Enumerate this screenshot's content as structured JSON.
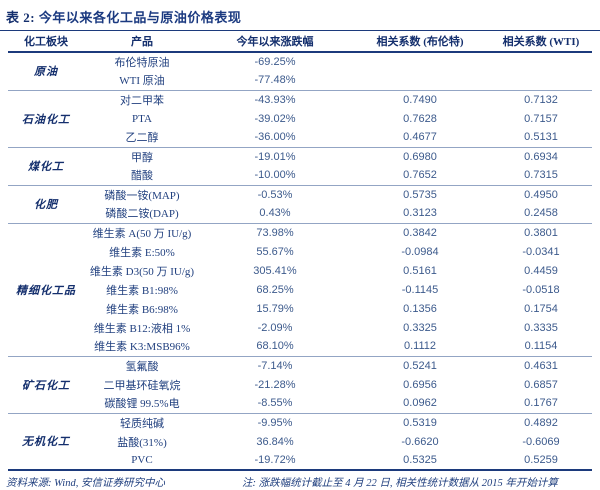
{
  "title": {
    "prefix": "表 2:",
    "text": "今年以来各化工品与原油价格表现"
  },
  "table": {
    "headers": [
      "化工板块",
      "产品",
      "今年以来涨跌幅",
      "相关系数 (布伦特)",
      "相关系数 (WTI)"
    ],
    "groups": [
      {
        "sector": "原油",
        "rows": [
          {
            "product": "布伦特原油",
            "change": "-69.25%",
            "corr_brent": "",
            "corr_wti": ""
          },
          {
            "product": "WTI 原油",
            "change": "-77.48%",
            "corr_brent": "",
            "corr_wti": ""
          }
        ]
      },
      {
        "sector": "石油化工",
        "rows": [
          {
            "product": "对二甲苯",
            "change": "-43.93%",
            "corr_brent": "0.7490",
            "corr_wti": "0.7132"
          },
          {
            "product": "PTA",
            "change": "-39.02%",
            "corr_brent": "0.7628",
            "corr_wti": "0.7157"
          },
          {
            "product": "乙二醇",
            "change": "-36.00%",
            "corr_brent": "0.4677",
            "corr_wti": "0.5131"
          }
        ]
      },
      {
        "sector": "煤化工",
        "rows": [
          {
            "product": "甲醇",
            "change": "-19.01%",
            "corr_brent": "0.6980",
            "corr_wti": "0.6934"
          },
          {
            "product": "醋酸",
            "change": "-10.00%",
            "corr_brent": "0.7652",
            "corr_wti": "0.7315"
          }
        ]
      },
      {
        "sector": "化肥",
        "rows": [
          {
            "product": "磷酸一铵(MAP)",
            "change": "-0.53%",
            "corr_brent": "0.5735",
            "corr_wti": "0.4950"
          },
          {
            "product": "磷酸二铵(DAP)",
            "change": "0.43%",
            "corr_brent": "0.3123",
            "corr_wti": "0.2458"
          }
        ]
      },
      {
        "sector": "精细化工品",
        "rows": [
          {
            "product": "维生素 A(50 万 IU/g)",
            "change": "73.98%",
            "corr_brent": "0.3842",
            "corr_wti": "0.3801"
          },
          {
            "product": "维生素 E:50%",
            "change": "55.67%",
            "corr_brent": "-0.0984",
            "corr_wti": "-0.0341"
          },
          {
            "product": "维生素 D3(50 万 IU/g)",
            "change": "305.41%",
            "corr_brent": "0.5161",
            "corr_wti": "0.4459"
          },
          {
            "product": "维生素 B1:98%",
            "change": "68.25%",
            "corr_brent": "-0.1145",
            "corr_wti": "-0.0518"
          },
          {
            "product": "维生素 B6:98%",
            "change": "15.79%",
            "corr_brent": "0.1356",
            "corr_wti": "0.1754"
          },
          {
            "product": "维生素 B12:液相 1%",
            "change": "-2.09%",
            "corr_brent": "0.3325",
            "corr_wti": "0.3335"
          },
          {
            "product": "维生素 K3:MSB96%",
            "change": "68.10%",
            "corr_brent": "0.1112",
            "corr_wti": "0.1154"
          }
        ]
      },
      {
        "sector": "矿石化工",
        "rows": [
          {
            "product": "氢氟酸",
            "change": "-7.14%",
            "corr_brent": "0.5241",
            "corr_wti": "0.4631"
          },
          {
            "product": "二甲基环硅氧烷",
            "change": "-21.28%",
            "corr_brent": "0.6956",
            "corr_wti": "0.6857"
          },
          {
            "product": "碳酸锂 99.5%电",
            "change": "-8.55%",
            "corr_brent": "0.0962",
            "corr_wti": "0.1767"
          }
        ]
      },
      {
        "sector": "无机化工",
        "rows": [
          {
            "product": "轻质纯碱",
            "change": "-9.95%",
            "corr_brent": "0.5319",
            "corr_wti": "0.4892"
          },
          {
            "product": "盐酸(31%)",
            "change": "36.84%",
            "corr_brent": "-0.6620",
            "corr_wti": "-0.6069"
          },
          {
            "product": "PVC",
            "change": "-19.72%",
            "corr_brent": "0.5325",
            "corr_wti": "0.5259"
          }
        ]
      }
    ]
  },
  "footer": {
    "source": "资料来源: Wind, 安信证券研究中心",
    "note": "注: 涨跌幅统计截止至 4 月 22 日, 相关性统计数据从 2015 年开始计算"
  },
  "colors": {
    "heading_navy": "#142f6d",
    "text_navy": "#21407f",
    "number_slate": "#3c5a8c",
    "rule_dark": "#1c3a7c",
    "rule_light": "#93a5c4"
  }
}
